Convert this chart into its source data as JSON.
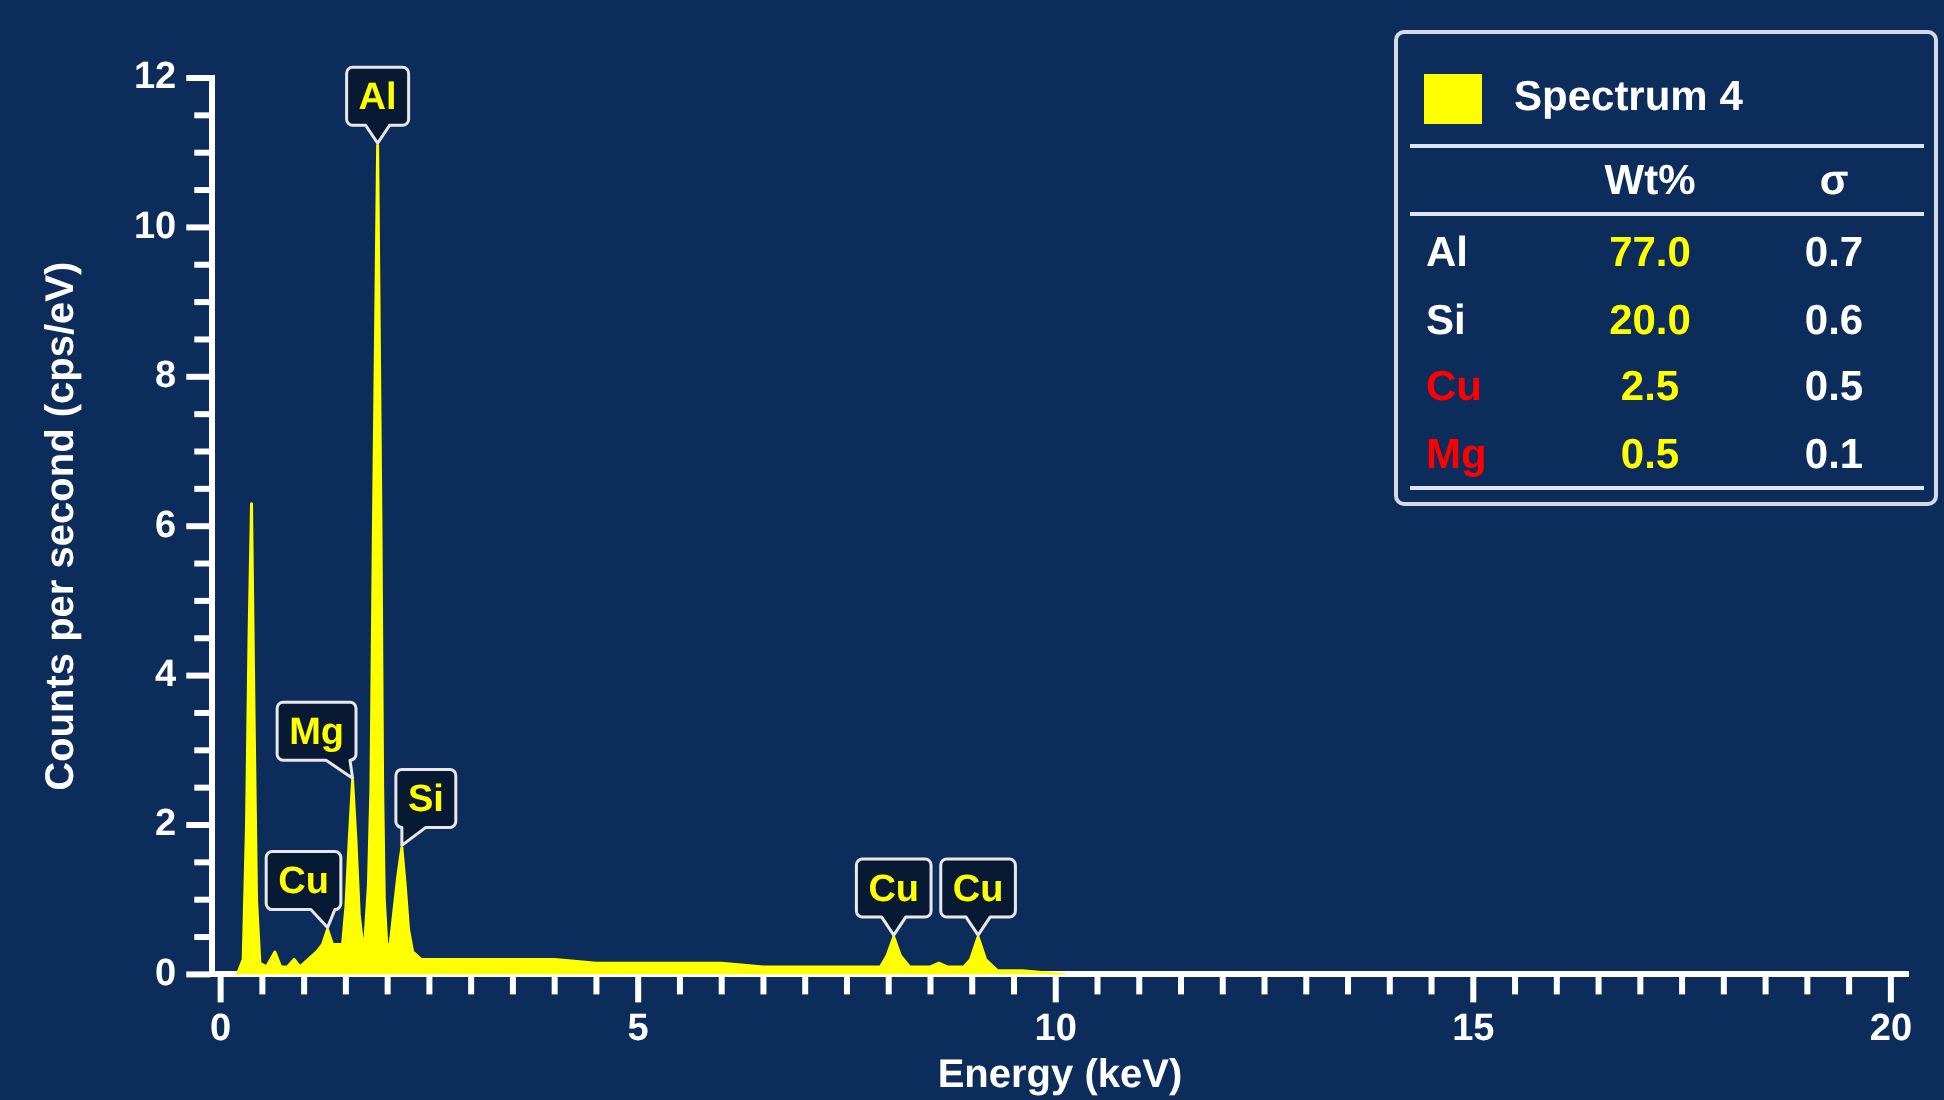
{
  "chart_data": [
    {
      "type": "area",
      "xlabel": "Energy (keV)",
      "ylabel": "Counts per second (cps/eV)",
      "xlim": [
        -0.1,
        20.2
      ],
      "ylim": [
        0,
        12
      ],
      "xticks": [
        0,
        {
          "value": 0.5,
          "label": null
        },
        {
          "value": 1,
          "label": null
        },
        {
          "value": 1.5,
          "label": null
        },
        {
          "value": 2,
          "label": null
        },
        {
          "value": 2.5,
          "label": null
        },
        {
          "value": 3,
          "label": null
        },
        {
          "value": 3.5,
          "label": null
        },
        {
          "value": 4,
          "label": null
        },
        {
          "value": 4.5,
          "label": null
        },
        5,
        {
          "value": 5.5,
          "label": null
        },
        {
          "value": 6,
          "label": null
        },
        {
          "value": 6.5,
          "label": null
        },
        {
          "value": 7,
          "label": null
        },
        {
          "value": 7.5,
          "label": null
        },
        {
          "value": 8,
          "label": null
        },
        {
          "value": 8.5,
          "label": null
        },
        {
          "value": 9,
          "label": null
        },
        {
          "value": 9.5,
          "label": null
        },
        10,
        {
          "value": 10.5,
          "label": null
        },
        {
          "value": 11,
          "label": null
        },
        {
          "value": 11.5,
          "label": null
        },
        {
          "value": 12,
          "label": null
        },
        {
          "value": 12.5,
          "label": null
        },
        {
          "value": 13,
          "label": null
        },
        {
          "value": 13.5,
          "label": null
        },
        {
          "value": 14,
          "label": null
        },
        {
          "value": 14.5,
          "label": null
        },
        15,
        {
          "value": 15.5,
          "label": null
        },
        {
          "value": 16,
          "label": null
        },
        {
          "value": 16.5,
          "label": null
        },
        {
          "value": 17,
          "label": null
        },
        {
          "value": 17.5,
          "label": null
        },
        {
          "value": 18,
          "label": null
        },
        {
          "value": 18.5,
          "label": null
        },
        {
          "value": 19,
          "label": null
        },
        {
          "value": 19.5,
          "label": null
        },
        20
      ],
      "yticks": [
        0,
        {
          "value": 0.5,
          "label": null
        },
        {
          "value": 1,
          "label": null
        },
        {
          "value": 1.5,
          "label": null
        },
        2,
        {
          "value": 2.5,
          "label": null
        },
        {
          "value": 3,
          "label": null
        },
        {
          "value": 3.5,
          "label": null
        },
        4,
        {
          "value": 4.5,
          "label": null
        },
        {
          "value": 5,
          "label": null
        },
        {
          "value": 5.5,
          "label": null
        },
        6,
        {
          "value": 6.5,
          "label": null
        },
        {
          "value": 7,
          "label": null
        },
        {
          "value": 7.5,
          "label": null
        },
        8,
        {
          "value": 8.5,
          "label": null
        },
        {
          "value": 9,
          "label": null
        },
        {
          "value": 9.5,
          "label": null
        },
        10,
        {
          "value": 10.5,
          "label": null
        },
        {
          "value": 11,
          "label": null
        },
        {
          "value": 11.5,
          "label": null
        },
        12
      ],
      "legend": "top right",
      "marker": "none",
      "series": [
        {
          "name": "Spectrum 4",
          "color": "#ffff00",
          "x": [
            0.2,
            0.27,
            0.31,
            0.34,
            0.37,
            0.4,
            0.43,
            0.47,
            0.55,
            0.65,
            0.72,
            0.8,
            0.88,
            0.95,
            1.05,
            1.15,
            1.22,
            1.28,
            1.34,
            1.4,
            1.46,
            1.5,
            1.54,
            1.58,
            1.62,
            1.66,
            1.7,
            1.73,
            1.77,
            1.8,
            1.83,
            1.88,
            1.92,
            1.94,
            1.96,
            1.99,
            2.03,
            2.08,
            2.12,
            2.17,
            2.21,
            2.25,
            2.3,
            2.4,
            2.6,
            2.8,
            3.0,
            3.3,
            3.6,
            4.0,
            4.5,
            5.0,
            5.5,
            6.0,
            6.5,
            7.0,
            7.5,
            7.9,
            7.98,
            8.06,
            8.14,
            8.25,
            8.5,
            8.6,
            8.7,
            8.9,
            8.98,
            9.07,
            9.16,
            9.3,
            9.6,
            9.9,
            10.1
          ],
          "values": [
            0,
            0.2,
            2.0,
            4.5,
            6.3,
            3.5,
            1.0,
            0.15,
            0.1,
            0.3,
            0.1,
            0.1,
            0.2,
            0.1,
            0.2,
            0.3,
            0.4,
            0.6,
            0.4,
            0.4,
            0.4,
            0.9,
            1.8,
            2.6,
            1.8,
            0.8,
            0.4,
            0.5,
            1.2,
            2.5,
            6.0,
            11.1,
            6.0,
            2.5,
            1.0,
            0.4,
            0.4,
            0.9,
            1.3,
            1.7,
            1.2,
            0.6,
            0.3,
            0.2,
            0.2,
            0.2,
            0.2,
            0.2,
            0.2,
            0.2,
            0.15,
            0.15,
            0.15,
            0.15,
            0.1,
            0.1,
            0.1,
            0.1,
            0.25,
            0.5,
            0.25,
            0.1,
            0.1,
            0.15,
            0.1,
            0.1,
            0.2,
            0.5,
            0.2,
            0.05,
            0.05,
            0.02,
            0
          ]
        }
      ],
      "annotations": [
        {
          "text": "Al",
          "x": 1.88,
          "y": 11.1
        },
        {
          "text": "Mg",
          "x": 1.58,
          "y": 2.6
        },
        {
          "text": "Si",
          "x": 2.17,
          "y": 1.7
        },
        {
          "text": "Cu",
          "x": 1.28,
          "y": 0.6
        },
        {
          "text": "Cu",
          "x": 8.06,
          "y": 0.5
        },
        {
          "text": "Cu",
          "x": 9.07,
          "y": 0.5
        }
      ]
    },
    {
      "type": "other",
      "categories": [
        "Al",
        "Si",
        "Cu",
        "Mg"
      ],
      "colors": [
        "#ffffff",
        "#ffffff",
        "#ff0000",
        "#ff0000"
      ],
      "data_labels": true,
      "series": [
        {
          "name": "Wt%",
          "values": [
            77.0,
            20.0,
            2.5,
            0.5
          ],
          "value_labels": [
            "77.0",
            "20.0",
            "2.5",
            "0.5"
          ]
        },
        {
          "name": "σ",
          "values": [
            0.7,
            0.6,
            0.5,
            0.1
          ],
          "value_labels": [
            "0.7",
            "0.6",
            "0.5",
            "0.1"
          ]
        }
      ]
    }
  ]
}
